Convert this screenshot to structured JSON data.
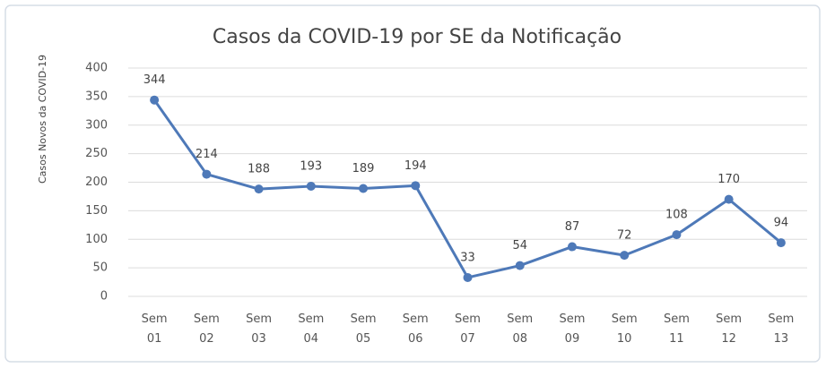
{
  "chart_data": {
    "type": "line",
    "title": "Casos da COVID-19 por SE da Notificação",
    "y_label": "Casos Novos da COVID-19",
    "categories": [
      "Sem 01",
      "Sem 02",
      "Sem 03",
      "Sem 04",
      "Sem 05",
      "Sem 06",
      "Sem 07",
      "Sem 08",
      "Sem 09",
      "Sem 10",
      "Sem 11",
      "Sem 12",
      "Sem 13"
    ],
    "series": [
      {
        "name": "Casos",
        "color": "#4e79b8",
        "values": [
          344,
          214,
          188,
          193,
          189,
          194,
          33,
          54,
          87,
          72,
          108,
          170,
          94
        ]
      }
    ],
    "ylim": [
      0,
      400
    ],
    "yticks": [
      0,
      50,
      100,
      150,
      200,
      250,
      300,
      350,
      400
    ],
    "grid": true
  }
}
